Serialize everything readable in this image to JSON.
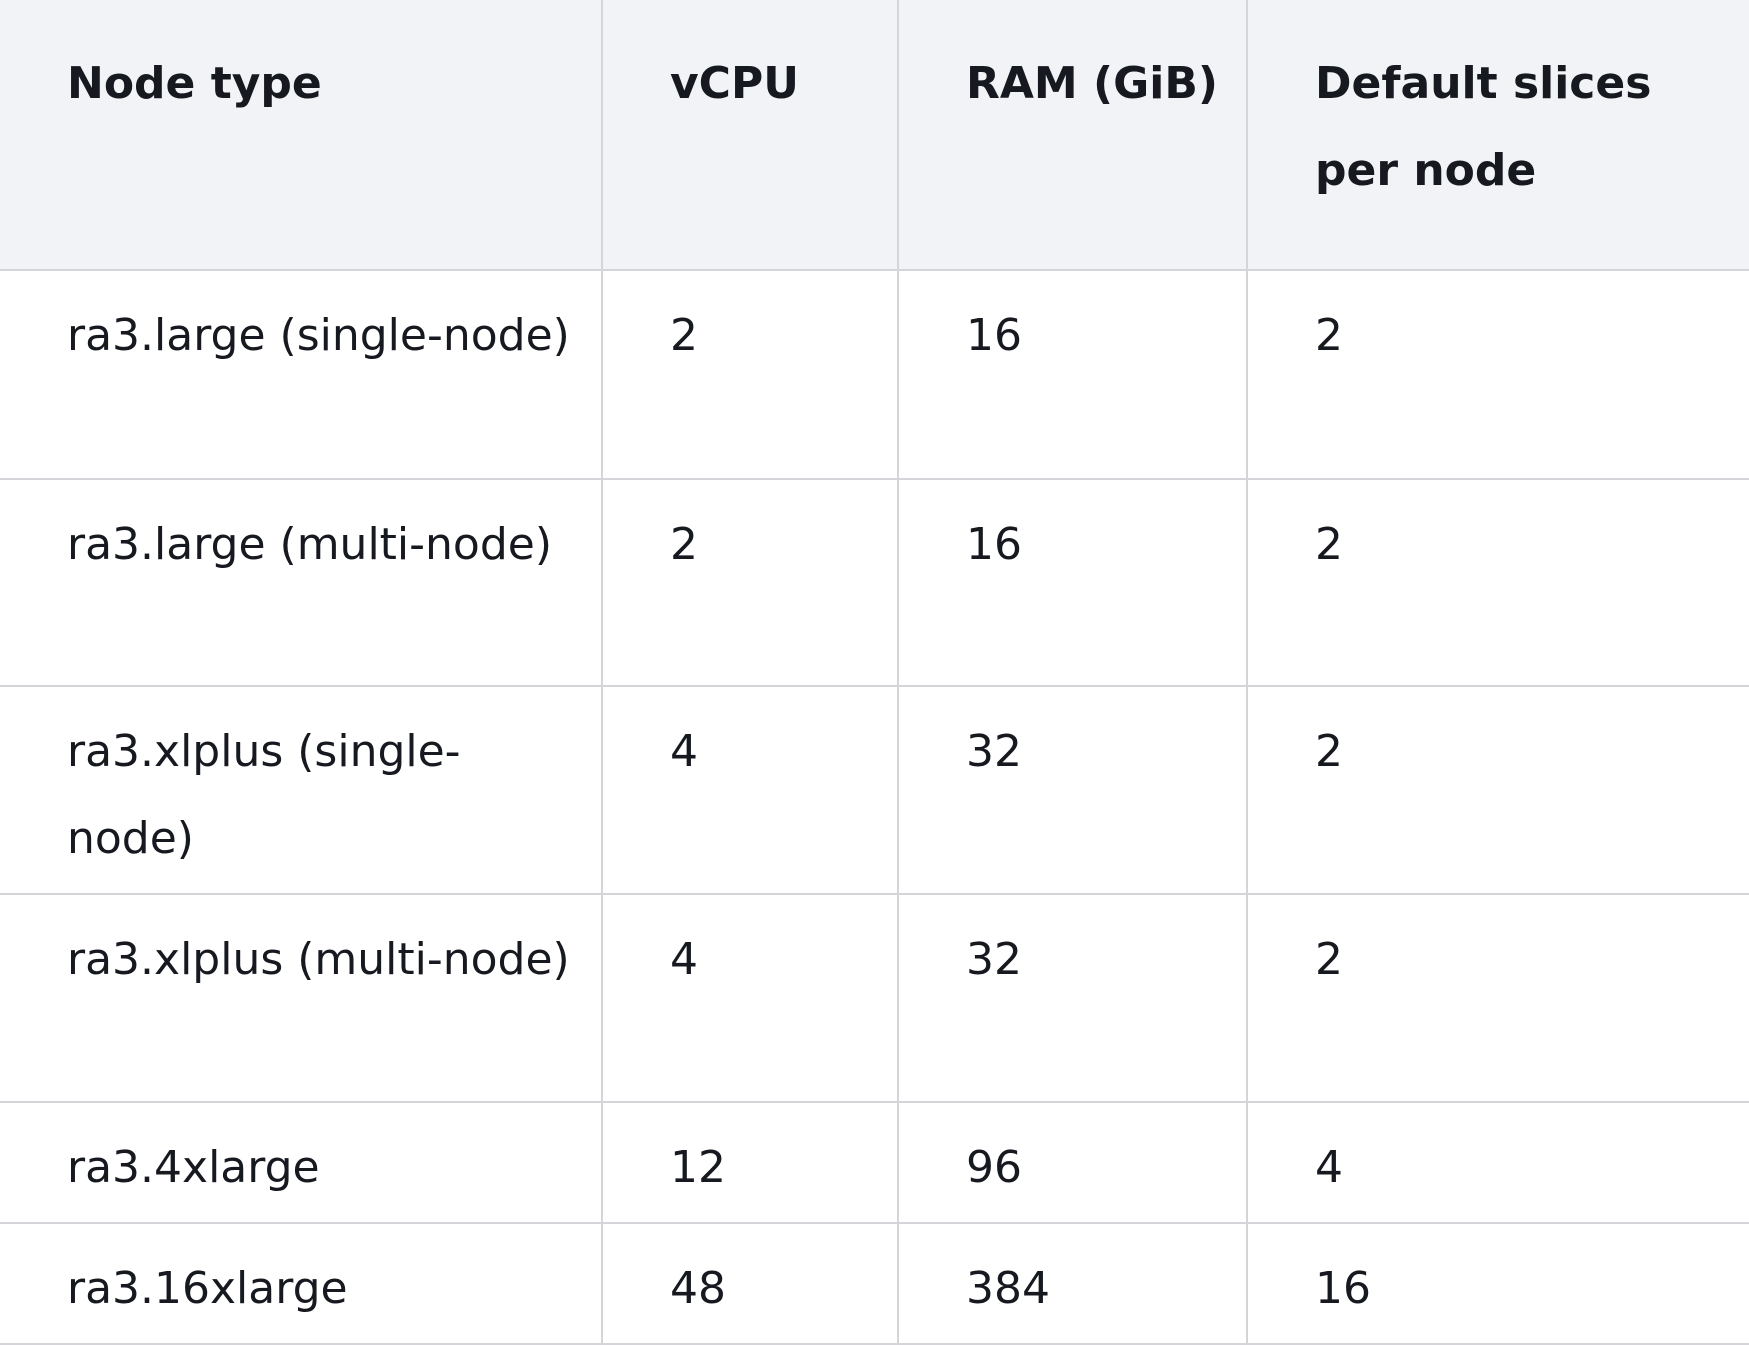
{
  "table": {
    "header": [
      "Node type",
      "vCPU",
      "RAM (GiB)",
      "Default slices per node"
    ],
    "rows": [
      [
        "ra3.large (single-node)",
        2,
        16,
        2
      ],
      [
        "ra3.large (multi-node)",
        2,
        16,
        2
      ],
      [
        "ra3.xlplus (single-node)",
        4,
        32,
        2
      ],
      [
        "ra3.xlplus (multi-node)",
        4,
        32,
        2
      ],
      [
        "ra3.4xlarge",
        12,
        96,
        4
      ],
      [
        "ra3.16xlarge",
        48,
        384,
        16
      ]
    ]
  }
}
